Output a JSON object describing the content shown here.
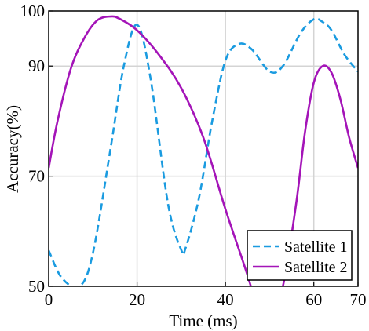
{
  "chart_data": {
    "type": "line",
    "title": "",
    "xlabel": "Time (ms)",
    "ylabel": "Accuracy(%)",
    "xlim": [
      0,
      70
    ],
    "ylim": [
      50,
      100
    ],
    "xticks": [
      0,
      20,
      40,
      60,
      70
    ],
    "yticks": [
      50,
      70,
      90,
      100
    ],
    "grid": true,
    "legend_position": "bottom-right",
    "series": [
      {
        "name": "Satellite 1",
        "color": "#1a9be0",
        "style": "dashed",
        "x": [
          0,
          3,
          7,
          10,
          14,
          17,
          20,
          23,
          27,
          30,
          31,
          34,
          37,
          40,
          43,
          46,
          50,
          53,
          57,
          60,
          62,
          64,
          67,
          70
        ],
        "y": [
          56.5,
          51.5,
          50,
          56,
          75,
          90,
          97.5,
          88,
          65,
          56.6,
          57,
          66,
          80,
          91,
          94,
          93,
          89,
          90,
          96,
          98.5,
          98,
          96.5,
          92,
          89
        ]
      },
      {
        "name": "Satellite 2",
        "color": "#a414b8",
        "style": "solid",
        "x": [
          0,
          2,
          5,
          8,
          11,
          14,
          16,
          20,
          25,
          30,
          35,
          40,
          45,
          48,
          50,
          53,
          56,
          58,
          60,
          62,
          64,
          66,
          68,
          70
        ],
        "y": [
          71.5,
          80,
          89.5,
          95,
          98.3,
          99,
          98.6,
          96.5,
          92,
          86,
          77,
          64,
          52,
          44,
          43,
          50,
          65,
          78,
          87,
          90,
          88.8,
          84,
          77,
          71.5
        ]
      }
    ]
  }
}
